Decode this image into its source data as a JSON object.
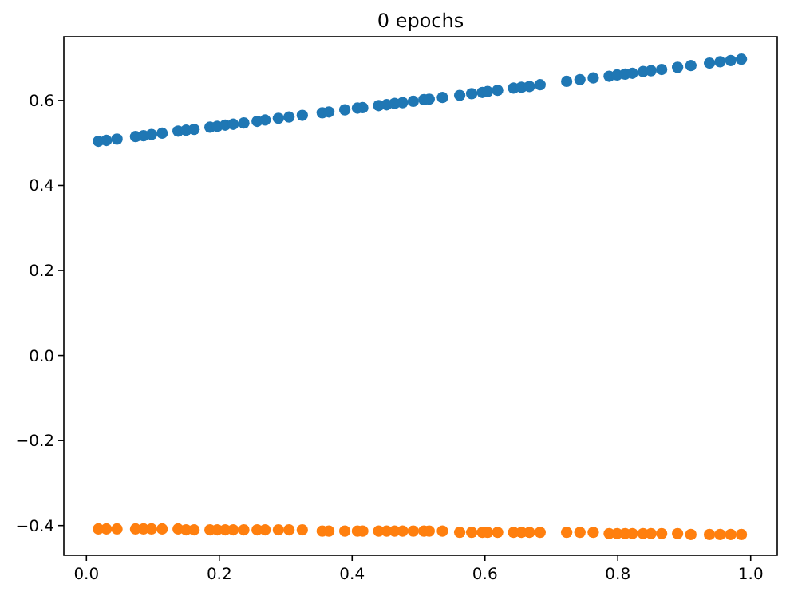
{
  "chart_data": {
    "type": "scatter",
    "title": "0 epochs",
    "x": [
      0.018,
      0.03,
      0.046,
      0.074,
      0.086,
      0.098,
      0.114,
      0.138,
      0.15,
      0.162,
      0.186,
      0.197,
      0.209,
      0.221,
      0.237,
      0.257,
      0.269,
      0.289,
      0.305,
      0.325,
      0.355,
      0.365,
      0.389,
      0.408,
      0.416,
      0.44,
      0.452,
      0.464,
      0.476,
      0.492,
      0.508,
      0.516,
      0.536,
      0.562,
      0.58,
      0.596,
      0.604,
      0.619,
      0.643,
      0.655,
      0.667,
      0.683,
      0.723,
      0.743,
      0.763,
      0.787,
      0.799,
      0.811,
      0.822,
      0.838,
      0.85,
      0.866,
      0.89,
      0.91,
      0.938,
      0.954,
      0.97,
      0.986
    ],
    "series": [
      {
        "color": "#1f77b4",
        "values": [
          0.504,
          0.506,
          0.509,
          0.515,
          0.517,
          0.52,
          0.523,
          0.528,
          0.53,
          0.532,
          0.537,
          0.539,
          0.542,
          0.544,
          0.547,
          0.551,
          0.554,
          0.558,
          0.561,
          0.565,
          0.571,
          0.573,
          0.578,
          0.582,
          0.583,
          0.588,
          0.59,
          0.593,
          0.595,
          0.598,
          0.602,
          0.603,
          0.607,
          0.612,
          0.616,
          0.619,
          0.621,
          0.624,
          0.629,
          0.631,
          0.633,
          0.637,
          0.645,
          0.649,
          0.653,
          0.657,
          0.66,
          0.662,
          0.664,
          0.668,
          0.67,
          0.673,
          0.678,
          0.682,
          0.688,
          0.691,
          0.694,
          0.697
        ]
      },
      {
        "color": "#ff7f0e",
        "values": [
          -0.408,
          -0.408,
          -0.408,
          -0.408,
          -0.408,
          -0.408,
          -0.408,
          -0.408,
          -0.41,
          -0.41,
          -0.41,
          -0.41,
          -0.41,
          -0.41,
          -0.41,
          -0.41,
          -0.41,
          -0.41,
          -0.41,
          -0.41,
          -0.413,
          -0.413,
          -0.413,
          -0.413,
          -0.413,
          -0.413,
          -0.413,
          -0.413,
          -0.413,
          -0.413,
          -0.413,
          -0.413,
          -0.413,
          -0.416,
          -0.416,
          -0.416,
          -0.416,
          -0.416,
          -0.416,
          -0.416,
          -0.416,
          -0.416,
          -0.416,
          -0.416,
          -0.416,
          -0.419,
          -0.419,
          -0.419,
          -0.419,
          -0.419,
          -0.419,
          -0.419,
          -0.419,
          -0.421,
          -0.421,
          -0.421,
          -0.421,
          -0.421
        ]
      }
    ],
    "marker": "circle",
    "grid": false,
    "xlim": [
      -0.034,
      1.04
    ],
    "xticks": [
      {
        "value": 0,
        "label": "0.0"
      },
      0.2,
      0.4,
      0.6,
      0.8,
      {
        "value": 1,
        "label": "1.0"
      }
    ],
    "ylim": [
      -0.47,
      0.75
    ],
    "yticks": [
      {
        "value": -0.4,
        "label": "−0.4"
      },
      {
        "value": -0.2,
        "label": "−0.2"
      },
      {
        "value": 0,
        "label": "0.0"
      },
      0.2,
      0.4,
      0.6
    ]
  }
}
